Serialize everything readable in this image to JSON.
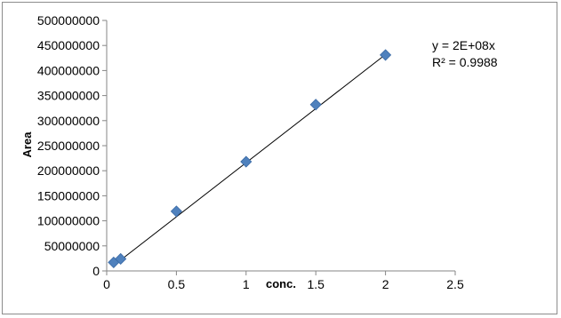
{
  "chart_data": {
    "type": "scatter",
    "xlabel": "conc.",
    "ylabel": "Area",
    "xlim": [
      0,
      2.5
    ],
    "ylim": [
      0,
      500000000
    ],
    "x_ticks": [
      0,
      0.5,
      1,
      1.5,
      2,
      2.5
    ],
    "x_tick_labels": [
      "0",
      "0.5",
      "1",
      "1.5",
      "2",
      "2.5"
    ],
    "y_ticks": [
      0,
      50000000,
      100000000,
      150000000,
      200000000,
      250000000,
      300000000,
      350000000,
      400000000,
      450000000,
      500000000
    ],
    "y_tick_labels": [
      "0",
      "50000000",
      "100000000",
      "150000000",
      "200000000",
      "250000000",
      "300000000",
      "350000000",
      "400000000",
      "450000000",
      "500000000"
    ],
    "grid": false,
    "series": [
      {
        "x": [
          0.05,
          0.1,
          0.5,
          1,
          1.5,
          2
        ],
        "y": [
          17000000,
          24000000,
          119000000,
          218000000,
          332000000,
          431000000
        ],
        "marker": "diamond",
        "color": "#4f81bd"
      }
    ],
    "trendline": {
      "type": "linear",
      "x": [
        0.05,
        2
      ],
      "y": [
        10800000,
        432000000
      ],
      "color": "#000000"
    },
    "annotations": [
      "y = 2E+08x",
      "R² = 0.9988"
    ]
  }
}
